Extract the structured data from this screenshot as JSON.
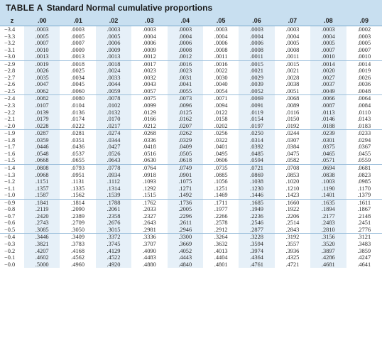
{
  "table": {
    "label": "TABLE A",
    "title": "Standard Normal cumulative proportions",
    "headers": [
      "z",
      ".00",
      ".01",
      ".02",
      ".03",
      ".04",
      ".05",
      ".06",
      ".07",
      ".08",
      ".09"
    ],
    "groups": [
      [
        [
          "−3.4",
          ".0003",
          ".0003",
          ".0003",
          ".0003",
          ".0003",
          ".0003",
          ".0003",
          ".0003",
          ".0003",
          ".0002"
        ],
        [
          "−3.3",
          ".0005",
          ".0005",
          ".0005",
          ".0004",
          ".0004",
          ".0004",
          ".0004",
          ".0004",
          ".0004",
          ".0003"
        ],
        [
          "−3.2",
          ".0007",
          ".0007",
          ".0006",
          ".0006",
          ".0006",
          ".0006",
          ".0006",
          ".0005",
          ".0005",
          ".0005"
        ],
        [
          "−3.1",
          ".0010",
          ".0009",
          ".0009",
          ".0009",
          ".0008",
          ".0008",
          ".0008",
          ".0008",
          ".0007",
          ".0007"
        ],
        [
          "−3.0",
          ".0013",
          ".0013",
          ".0013",
          ".0012",
          ".0012",
          ".0011",
          ".0011",
          ".0011",
          ".0010",
          ".0010"
        ]
      ],
      [
        [
          "−2.9",
          ".0019",
          ".0018",
          ".0018",
          ".0017",
          ".0016",
          ".0016",
          ".0015",
          ".0015",
          ".0014",
          ".0014"
        ],
        [
          "−2.8",
          ".0026",
          ".0025",
          ".0024",
          ".0023",
          ".0023",
          ".0022",
          ".0021",
          ".0021",
          ".0020",
          ".0019"
        ],
        [
          "−2.7",
          ".0035",
          ".0034",
          ".0033",
          ".0032",
          ".0031",
          ".0030",
          ".0029",
          ".0028",
          ".0027",
          ".0026"
        ],
        [
          "−2.6",
          ".0047",
          ".0045",
          ".0044",
          ".0043",
          ".0041",
          ".0040",
          ".0039",
          ".0038",
          ".0037",
          ".0036"
        ],
        [
          "−2.5",
          ".0062",
          ".0060",
          ".0059",
          ".0057",
          ".0055",
          ".0054",
          ".0052",
          ".0051",
          ".0049",
          ".0048"
        ]
      ],
      [
        [
          "−2.4",
          ".0082",
          ".0080",
          ".0078",
          ".0075",
          ".0073",
          ".0071",
          ".0069",
          ".0068",
          ".0066",
          ".0064"
        ],
        [
          "−2.3",
          ".0107",
          ".0104",
          ".0102",
          ".0099",
          ".0096",
          ".0094",
          ".0091",
          ".0089",
          ".0087",
          ".0084"
        ],
        [
          "−2.2",
          ".0139",
          ".0136",
          ".0132",
          ".0129",
          ".0125",
          ".0122",
          ".0119",
          ".0116",
          ".0113",
          ".0110"
        ],
        [
          "−2.1",
          ".0179",
          ".0174",
          ".0170",
          ".0166",
          ".0162",
          ".0158",
          ".0154",
          ".0150",
          ".0146",
          ".0143"
        ],
        [
          "−2.0",
          ".0228",
          ".0222",
          ".0217",
          ".0212",
          ".0207",
          ".0202",
          ".0197",
          ".0192",
          ".0188",
          ".0183"
        ]
      ],
      [
        [
          "−1.9",
          ".0287",
          ".0281",
          ".0274",
          ".0268",
          ".0262",
          ".0256",
          ".0250",
          ".0244",
          ".0239",
          ".0233"
        ],
        [
          "−1.8",
          ".0359",
          ".0351",
          ".0344",
          ".0336",
          ".0329",
          ".0322",
          ".0314",
          ".0307",
          ".0301",
          ".0294"
        ],
        [
          "−1.7",
          ".0446",
          ".0436",
          ".0427",
          ".0418",
          ".0409",
          ".0401",
          ".0392",
          ".0384",
          ".0375",
          ".0367"
        ],
        [
          "−1.6",
          ".0548",
          ".0537",
          ".0526",
          ".0516",
          ".0505",
          ".0495",
          ".0485",
          ".0475",
          ".0465",
          ".0455"
        ],
        [
          "−1.5",
          ".0668",
          ".0655",
          ".0643",
          ".0630",
          ".0618",
          ".0606",
          ".0594",
          ".0582",
          ".0571",
          ".0559"
        ]
      ],
      [
        [
          "−1.4",
          ".0808",
          ".0793",
          ".0778",
          ".0764",
          ".0749",
          ".0735",
          ".0721",
          ".0708",
          ".0694",
          ".0681"
        ],
        [
          "−1.3",
          ".0968",
          ".0951",
          ".0934",
          ".0918",
          ".0901",
          ".0885",
          ".0869",
          ".0853",
          ".0838",
          ".0823"
        ],
        [
          "−1.2",
          ".1151",
          ".1131",
          ".1112",
          ".1093",
          ".1075",
          ".1056",
          ".1038",
          ".1020",
          ".1003",
          ".0985"
        ],
        [
          "−1.1",
          ".1357",
          ".1335",
          ".1314",
          ".1292",
          ".1271",
          ".1251",
          ".1230",
          ".1210",
          ".1190",
          ".1170"
        ],
        [
          "−1.0",
          ".1587",
          ".1562",
          ".1539",
          ".1515",
          ".1492",
          ".1469",
          ".1446",
          ".1423",
          ".1401",
          ".1379"
        ]
      ],
      [
        [
          "−0.9",
          ".1841",
          ".1814",
          ".1788",
          ".1762",
          ".1736",
          ".1711",
          ".1685",
          ".1660",
          ".1635",
          ".1611"
        ],
        [
          "−0.8",
          ".2119",
          ".2090",
          ".2061",
          ".2033",
          ".2005",
          ".1977",
          ".1949",
          ".1922",
          ".1894",
          ".1867"
        ],
        [
          "−0.7",
          ".2420",
          ".2389",
          ".2358",
          ".2327",
          ".2296",
          ".2266",
          ".2236",
          ".2206",
          ".2177",
          ".2148"
        ],
        [
          "−0.6",
          ".2743",
          ".2709",
          ".2676",
          ".2643",
          ".2611",
          ".2578",
          ".2546",
          ".2514",
          ".2483",
          ".2451"
        ],
        [
          "−0.5",
          ".3085",
          ".3050",
          ".3015",
          ".2981",
          ".2946",
          ".2912",
          ".2877",
          ".2843",
          ".2810",
          ".2776"
        ]
      ],
      [
        [
          "−0.4",
          ".3446",
          ".3409",
          ".3372",
          ".3336",
          ".3300",
          ".3264",
          ".3228",
          ".3192",
          ".3156",
          ".3121"
        ],
        [
          "−0.3",
          ".3821",
          ".3783",
          ".3745",
          ".3707",
          ".3669",
          ".3632",
          ".3594",
          ".3557",
          ".3520",
          ".3483"
        ],
        [
          "−0.2",
          ".4207",
          ".4168",
          ".4129",
          ".4090",
          ".4052",
          ".4013",
          ".3974",
          ".3936",
          ".3897",
          ".3859"
        ],
        [
          "−0.1",
          ".4602",
          ".4562",
          ".4522",
          ".4483",
          ".4443",
          ".4404",
          ".4364",
          ".4325",
          ".4286",
          ".4247"
        ],
        [
          "−0.0",
          ".5000",
          ".4960",
          ".4920",
          ".4880",
          ".4840",
          ".4801",
          ".4761",
          ".4721",
          ".4681",
          ".4641"
        ]
      ]
    ]
  },
  "colors": {
    "header_bg": "#c8dff0",
    "shaded_column_bg": "#e6f0f8",
    "divider": "#9ec0dc"
  }
}
